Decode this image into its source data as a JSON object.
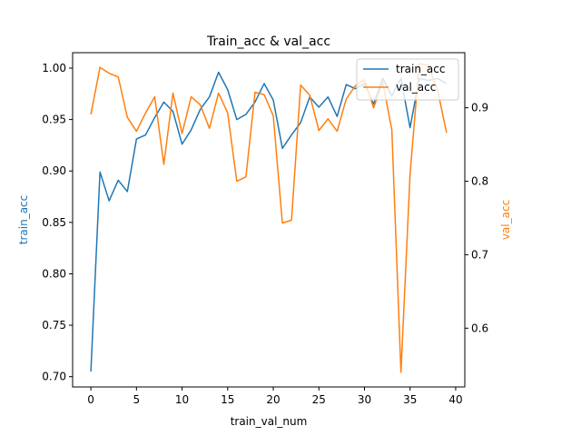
{
  "chart_data": {
    "type": "line",
    "title": "Train_acc & val_acc",
    "xlabel": "train_val_num",
    "ylabel_left": "train_acc",
    "ylabel_right": "val_acc",
    "xlim": [
      -2,
      41
    ],
    "ylim_left": [
      0.69,
      1.015
    ],
    "ylim_right": [
      0.52,
      0.975
    ],
    "x_ticks": [
      0,
      5,
      10,
      15,
      20,
      25,
      30,
      35,
      40
    ],
    "y_ticks_left": [
      0.7,
      0.75,
      0.8,
      0.85,
      0.9,
      0.95,
      1.0
    ],
    "y_ticks_left_labels": [
      "0.70",
      "0.75",
      "0.80",
      "0.85",
      "0.90",
      "0.95",
      "1.00"
    ],
    "y_ticks_right": [
      0.6,
      0.7,
      0.8,
      0.9
    ],
    "y_ticks_right_labels": [
      "0.6",
      "0.7",
      "0.8",
      "0.9"
    ],
    "legend_placement": "top-right",
    "grid": false,
    "x": [
      0,
      1,
      2,
      3,
      4,
      5,
      6,
      7,
      8,
      9,
      10,
      11,
      12,
      13,
      14,
      15,
      16,
      17,
      18,
      19,
      20,
      21,
      22,
      23,
      24,
      25,
      26,
      27,
      28,
      29,
      30,
      31,
      32,
      33,
      34,
      35,
      36,
      37,
      38,
      39
    ],
    "series": [
      {
        "name": "train_acc",
        "axis": "left",
        "color": "#1f77b4",
        "values": [
          0.705,
          0.899,
          0.871,
          0.891,
          0.88,
          0.931,
          0.935,
          0.952,
          0.967,
          0.958,
          0.926,
          0.94,
          0.96,
          0.972,
          0.996,
          0.979,
          0.95,
          0.955,
          0.967,
          0.985,
          0.969,
          0.922,
          0.935,
          0.947,
          0.972,
          0.962,
          0.972,
          0.953,
          0.984,
          0.98,
          0.985,
          0.965,
          0.99,
          0.973,
          0.99,
          0.942,
          0.99,
          0.988,
          0.99,
          0.985
        ]
      },
      {
        "name": "val_acc",
        "axis": "right",
        "color": "#ff7f0e",
        "values": [
          0.891,
          0.955,
          0.947,
          0.942,
          0.887,
          0.868,
          0.893,
          0.915,
          0.823,
          0.92,
          0.865,
          0.915,
          0.904,
          0.872,
          0.92,
          0.893,
          0.8,
          0.806,
          0.921,
          0.918,
          0.889,
          0.743,
          0.747,
          0.931,
          0.917,
          0.869,
          0.885,
          0.868,
          0.912,
          0.93,
          0.938,
          0.9,
          0.935,
          0.87,
          0.54,
          0.81,
          0.96,
          0.958,
          0.925,
          0.866
        ]
      }
    ]
  }
}
